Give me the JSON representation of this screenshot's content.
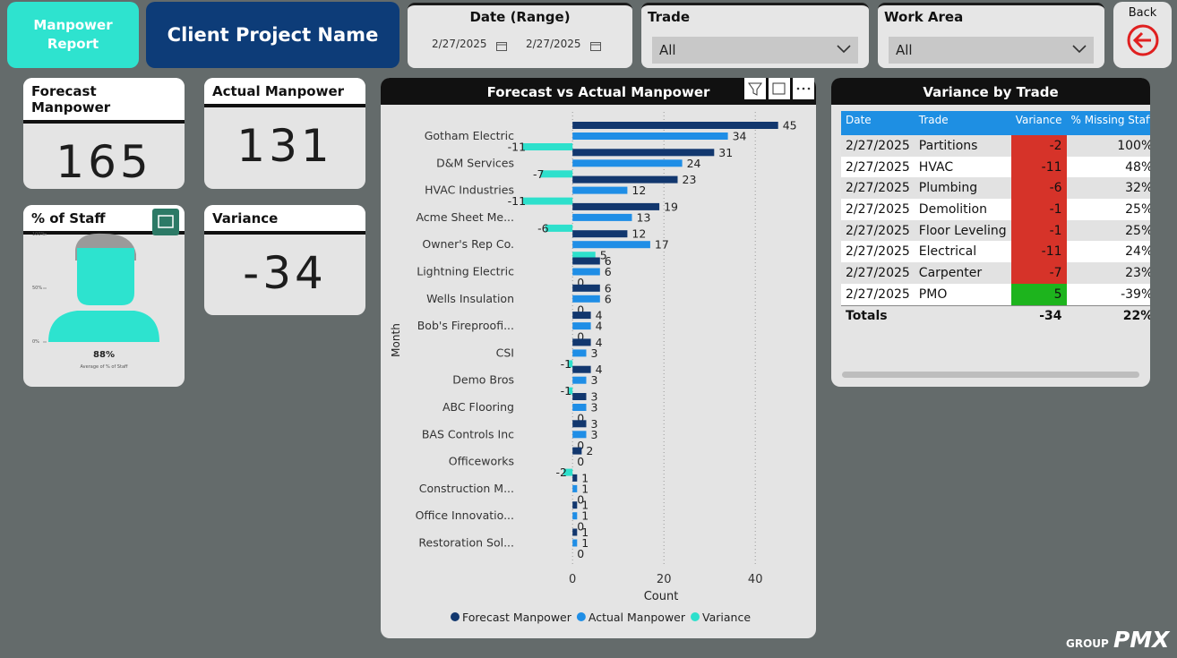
{
  "header": {
    "report_button": "Manpower Report",
    "project": "Client Project Name",
    "back": "Back"
  },
  "filters": {
    "date": {
      "label": "Date (Range)",
      "from": "2/27/2025",
      "to": "2/27/2025"
    },
    "trade": {
      "label": "Trade",
      "value": "All"
    },
    "work_area": {
      "label": "Work Area",
      "value": "All"
    }
  },
  "cards": [
    {
      "title": "Forecast Manpower",
      "value": 165
    },
    {
      "title": "Actual Manpower",
      "value": 131
    },
    {
      "title": "Variance",
      "value": -34
    }
  ],
  "staff_card": {
    "title": "% of Staff",
    "gauge_labels": [
      "100%",
      "50%",
      "0%"
    ],
    "value": "88%",
    "caption": "Average of % of Staff"
  },
  "chart_data": {
    "type": "bar",
    "orientation": "horizontal",
    "title": "Forecast vs Actual Manpower",
    "x_label": "Count",
    "y_label": "Month",
    "categories": [
      "Gotham Electric",
      "D&M Services",
      "HVAC Industries",
      "Acme Sheet Me...",
      "Owner's Rep Co.",
      "Lightning Electric",
      "Wells Insulation",
      "Bob's Fireproofi...",
      "CSI",
      "Demo Bros",
      "ABC Flooring",
      "BAS Controls Inc",
      "Officeworks",
      "Construction M...",
      "Office Innovatio...",
      "Restoration Sol..."
    ],
    "series": [
      {
        "name": "Forecast Manpower",
        "color": "#12376e",
        "values": [
          45,
          31,
          23,
          19,
          12,
          6,
          6,
          4,
          4,
          4,
          3,
          3,
          2,
          1,
          1,
          1
        ]
      },
      {
        "name": "Actual Manpower",
        "color": "#1f8ee6",
        "values": [
          34,
          24,
          12,
          13,
          17,
          6,
          6,
          4,
          3,
          3,
          3,
          3,
          0,
          1,
          1,
          1
        ]
      },
      {
        "name": "Variance",
        "color": "#2de0cc",
        "values": [
          -11,
          -7,
          -11,
          -6,
          5,
          0,
          0,
          0,
          -1,
          -1,
          0,
          0,
          -2,
          0,
          0,
          0
        ]
      }
    ],
    "xlim": [
      -12,
      48
    ],
    "xticks": [
      0,
      20,
      40
    ],
    "grid": true,
    "legend": "bottom"
  },
  "table": {
    "title": "Variance by Trade",
    "columns": [
      "Date",
      "Trade",
      "Variance",
      "% Missing Staff"
    ],
    "rows": [
      [
        "2/27/2025",
        "Partitions",
        -2,
        "100%"
      ],
      [
        "2/27/2025",
        "HVAC",
        -11,
        "48%"
      ],
      [
        "2/27/2025",
        "Plumbing",
        -6,
        "32%"
      ],
      [
        "2/27/2025",
        "Demolition",
        -1,
        "25%"
      ],
      [
        "2/27/2025",
        "Floor Leveling",
        -1,
        "25%"
      ],
      [
        "2/27/2025",
        "Electrical",
        -11,
        "24%"
      ],
      [
        "2/27/2025",
        "Carpenter",
        -7,
        "23%"
      ],
      [
        "2/27/2025",
        "PMO",
        5,
        "-39%"
      ]
    ],
    "totals": {
      "label": "Totals",
      "variance": -34,
      "missing": "22%"
    },
    "negative_color": "#d63329",
    "positive_color": "#1db41d"
  },
  "logo": {
    "group": "GROUP",
    "name": "PMX"
  }
}
